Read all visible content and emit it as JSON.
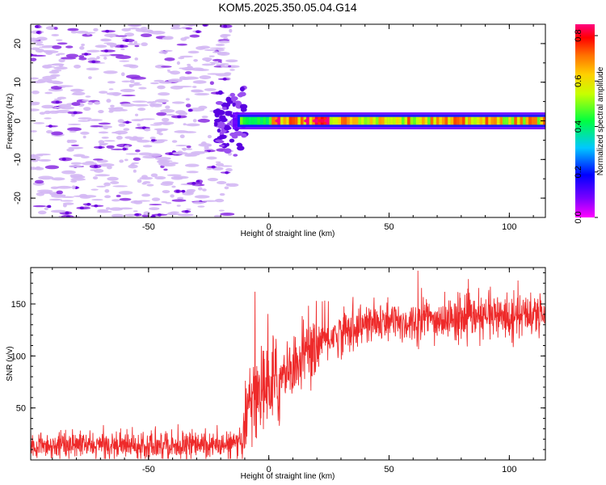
{
  "title": "KOM5.2025.350.05.04.G14",
  "chart_data": [
    {
      "type": "heatmap",
      "name": "spectrogram",
      "xlabel": "Height of straight line (km)",
      "ylabel": "Frequency (Hz)",
      "xlim": [
        -99,
        115
      ],
      "ylim": [
        -25,
        25
      ],
      "xticks": [
        -50,
        0,
        50,
        100
      ],
      "yticks": [
        -20,
        -10,
        0,
        10,
        20
      ],
      "colorbar": {
        "label": "Normalized spectral amplitude",
        "range": [
          0.0,
          0.85
        ],
        "ticks": [
          0.0,
          0.2,
          0.4,
          0.6,
          0.8
        ],
        "colormap": [
          "#ff00ff",
          "#7a00ff",
          "#0000ff",
          "#00c8ff",
          "#00ff40",
          "#c8ff00",
          "#ffd000",
          "#ff7000",
          "#ff0000",
          "#ff0080"
        ]
      },
      "description_values": {
        "noise_region_x": [
          -99,
          -15
        ],
        "noise_amplitude": 0.05,
        "signal_start_x": -15,
        "signal_frequency_hz": 0,
        "signal_amplitude_range": [
          0.3,
          0.85
        ]
      }
    },
    {
      "type": "line",
      "name": "snr",
      "xlabel": "Height of straight line (km)",
      "ylabel": "SNR (v/v)",
      "xlim": [
        -99,
        115
      ],
      "ylim": [
        0,
        185
      ],
      "xticks": [
        -50,
        0,
        50,
        100
      ],
      "yticks": [
        50,
        100,
        150
      ],
      "color": "#ee2a2a",
      "segments": [
        {
          "x": [
            -99,
            -11
          ],
          "mean": [
            14,
            14
          ],
          "noise": 6
        },
        {
          "x": [
            -11,
            -8
          ],
          "mean": [
            14,
            70
          ],
          "noise": 15
        },
        {
          "x": [
            -8,
            5
          ],
          "mean": [
            60,
            75
          ],
          "noise": 22
        },
        {
          "x": [
            5,
            25
          ],
          "mean": [
            80,
            118
          ],
          "noise": 14
        },
        {
          "x": [
            25,
            40
          ],
          "mean": [
            118,
            130
          ],
          "noise": 10
        },
        {
          "x": [
            40,
            115
          ],
          "mean": [
            130,
            140
          ],
          "noise": 10
        }
      ],
      "peak": {
        "x": 62,
        "y": 182
      }
    }
  ]
}
